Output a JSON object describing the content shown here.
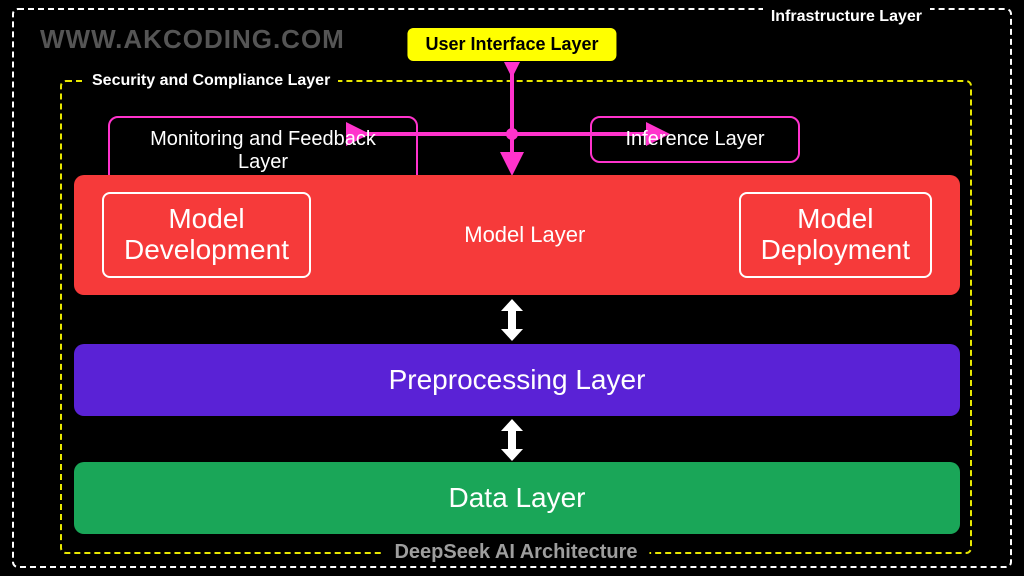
{
  "watermark": "WWW.AKCODING.COM",
  "title": "DeepSeek AI Architecture",
  "outer": {
    "label": "Infrastructure Layer",
    "border_color": "#ffffff"
  },
  "inner": {
    "label": "Security and Compliance Layer",
    "border_color": "#e8e800"
  },
  "ui_layer": {
    "label": "User Interface Layer",
    "bg": "#ffff00",
    "text_color": "#000000"
  },
  "monitoring": {
    "label": "Monitoring and Feedback Layer",
    "border_color": "#ff33cc"
  },
  "inference": {
    "label": "Inference Layer",
    "border_color": "#ff33cc"
  },
  "model": {
    "label": "Model Layer",
    "bg": "#f63a3a",
    "dev": "Model\nDevelopment",
    "dep": "Model\nDeployment",
    "sub_border": "#ffffff"
  },
  "preprocessing": {
    "label": "Preprocessing Layer",
    "bg": "#5a22d6"
  },
  "data": {
    "label": "Data Layer",
    "bg": "#1aa658"
  },
  "arrows": {
    "cross_color": "#ff33cc",
    "double_color": "#ffffff"
  },
  "colors": {
    "background": "#000000",
    "watermark": "#555555",
    "title": "#9e9e9e",
    "text_light": "#ffffff"
  },
  "fontsize": {
    "watermark": 26,
    "outer_label": 16,
    "inner_label": 16,
    "ui": 18,
    "magenta_box": 20,
    "model_label": 22,
    "sub_box": 28,
    "big_layer": 28,
    "title": 20
  }
}
